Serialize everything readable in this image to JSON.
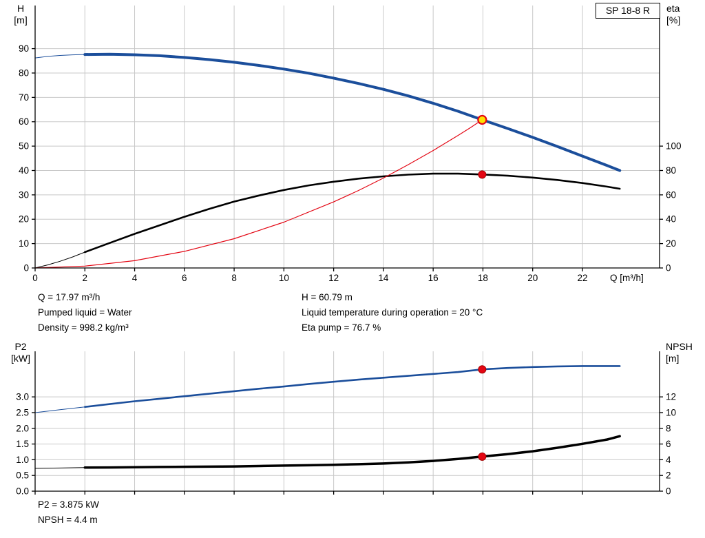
{
  "colors": {
    "curve_blue": "#1b4e9b",
    "curve_black": "#000000",
    "curve_red": "#e30613",
    "marker_yellow": "#ffe100",
    "marker_red": "#e30613",
    "grid": "#c8c8c8",
    "axis": "#000000"
  },
  "annotations": {
    "top_left": [
      "Q = 17.97 m³/h",
      "Pumped liquid = Water",
      "Density = 998.2 kg/m³"
    ],
    "top_right": [
      "H = 60.79 m",
      "Liquid temperature during operation = 20 °C",
      "Eta pump = 76.7 %"
    ],
    "bottom": [
      "P2 = 3.875 kW",
      "NPSH = 4.4 m"
    ]
  },
  "chart_data": [
    {
      "type": "line",
      "title": "SP 18-8 R",
      "x_axis": {
        "label": "Q [m³/h]",
        "min": 0,
        "max": 25.1,
        "tick_values": [
          0,
          2,
          4,
          6,
          8,
          10,
          12,
          14,
          16,
          18,
          20,
          22
        ],
        "tick_labels": [
          "0",
          "2",
          "4",
          "6",
          "8",
          "10",
          "12",
          "14",
          "16",
          "18",
          "20",
          "22"
        ]
      },
      "y_left": {
        "label": "H [m]",
        "label_lines": [
          "H",
          "[m]"
        ],
        "min": 0,
        "max": 107.7,
        "tick_values": [
          0,
          10,
          20,
          30,
          40,
          50,
          60,
          70,
          80,
          90
        ],
        "tick_labels": [
          "0",
          "10",
          "20",
          "30",
          "40",
          "50",
          "60",
          "70",
          "80",
          "90"
        ]
      },
      "y_right": {
        "label": "eta [%]",
        "label_lines": [
          "eta",
          "[%]"
        ],
        "min": 0,
        "max": 215.4,
        "tick_values": [
          0,
          20,
          40,
          60,
          80,
          100
        ],
        "tick_labels": [
          "0",
          "20",
          "40",
          "60",
          "80",
          "100"
        ]
      },
      "grid": true,
      "legend": "none",
      "series": [
        {
          "name": "head-curve",
          "axis": "left",
          "color": "#1b4e9b",
          "width": 4,
          "thin_until": 1.8,
          "points": [
            [
              0,
              86.2
            ],
            [
              0.5,
              86.8
            ],
            [
              1,
              87.2
            ],
            [
              1.5,
              87.45
            ],
            [
              2,
              87.6
            ],
            [
              3,
              87.7
            ],
            [
              4,
              87.5
            ],
            [
              5,
              87.1
            ],
            [
              6,
              86.4
            ],
            [
              7,
              85.5
            ],
            [
              8,
              84.4
            ],
            [
              9,
              83.1
            ],
            [
              10,
              81.6
            ],
            [
              11,
              79.9
            ],
            [
              12,
              77.9
            ],
            [
              13,
              75.7
            ],
            [
              14,
              73.3
            ],
            [
              15,
              70.6
            ],
            [
              16,
              67.6
            ],
            [
              17,
              64.3
            ],
            [
              17.97,
              60.79
            ],
            [
              19,
              57.2
            ],
            [
              20,
              53.6
            ],
            [
              21,
              49.8
            ],
            [
              22,
              45.9
            ],
            [
              23,
              42.0
            ],
            [
              23.5,
              40.0
            ]
          ]
        },
        {
          "name": "efficiency-curve",
          "axis": "right",
          "color": "#000000",
          "width": 2.6,
          "thin_until": 1.6,
          "points": [
            [
              0,
              0
            ],
            [
              0.5,
              2.5
            ],
            [
              1,
              5.5
            ],
            [
              1.5,
              9
            ],
            [
              2,
              13
            ],
            [
              3,
              20.5
            ],
            [
              4,
              28
            ],
            [
              5,
              35
            ],
            [
              6,
              42
            ],
            [
              7,
              48.5
            ],
            [
              8,
              54.5
            ],
            [
              9,
              59.5
            ],
            [
              10,
              64
            ],
            [
              11,
              67.8
            ],
            [
              12,
              70.8
            ],
            [
              13,
              73.3
            ],
            [
              14,
              75.2
            ],
            [
              15,
              76.6
            ],
            [
              16,
              77.4
            ],
            [
              17,
              77.4
            ],
            [
              17.97,
              76.7
            ],
            [
              19,
              75.7
            ],
            [
              20,
              74.2
            ],
            [
              21,
              72.2
            ],
            [
              22,
              69.7
            ],
            [
              23,
              66.7
            ],
            [
              23.5,
              65.0
            ]
          ]
        },
        {
          "name": "system-curve",
          "axis": "left",
          "color": "#e30613",
          "width": 1.2,
          "thin_until": 0,
          "points": [
            [
              0,
              0
            ],
            [
              2,
              0.75
            ],
            [
              4,
              3.0
            ],
            [
              6,
              6.8
            ],
            [
              8,
              12.0
            ],
            [
              10,
              18.8
            ],
            [
              12,
              27.1
            ],
            [
              13,
              31.8
            ],
            [
              14,
              36.9
            ],
            [
              15,
              42.4
            ],
            [
              16,
              48.2
            ],
            [
              17,
              54.4
            ],
            [
              17.5,
              57.6
            ],
            [
              17.97,
              60.79
            ]
          ]
        }
      ],
      "markers": [
        {
          "name": "duty-point-head",
          "x": 17.97,
          "y": 60.79,
          "axis": "left",
          "fill": "#ffe100",
          "stroke": "#e30613",
          "r": 6,
          "stroke_width": 2.2
        },
        {
          "name": "duty-point-eta",
          "x": 17.97,
          "y": 76.7,
          "axis": "right",
          "fill": "#e30613",
          "stroke": "#a50000",
          "r": 5.5,
          "stroke_width": 1
        }
      ]
    },
    {
      "type": "line",
      "title": "",
      "x_axis": {
        "label": "",
        "min": 0,
        "max": 25.1,
        "tick_values": [
          0,
          2,
          4,
          6,
          8,
          10,
          12,
          14,
          16,
          18,
          20,
          22
        ],
        "tick_labels": null
      },
      "y_left": {
        "label": "P2 [kW]",
        "label_lines": [
          "P2",
          "[kW]"
        ],
        "min": 0,
        "max": 4.45,
        "tick_values": [
          0,
          0.5,
          1,
          1.5,
          2,
          2.5,
          3
        ],
        "tick_labels": [
          "0.0",
          "0.5",
          "1.0",
          "1.5",
          "2.0",
          "2.5",
          "3.0"
        ]
      },
      "y_right": {
        "label": "NPSH [m]",
        "label_lines": [
          "NPSH",
          "[m]"
        ],
        "min": 0,
        "max": 17.8,
        "tick_values": [
          0,
          2,
          4,
          6,
          8,
          10,
          12
        ],
        "tick_labels": [
          "0",
          "2",
          "4",
          "6",
          "8",
          "10",
          "12"
        ]
      },
      "grid": true,
      "legend": "none",
      "series": [
        {
          "name": "p2-curve",
          "axis": "left",
          "color": "#1b4e9b",
          "width": 2.6,
          "thin_until": 1.7,
          "points": [
            [
              0,
              2.5
            ],
            [
              1,
              2.59
            ],
            [
              2,
              2.68
            ],
            [
              3,
              2.77
            ],
            [
              4,
              2.86
            ],
            [
              5,
              2.94
            ],
            [
              6,
              3.02
            ],
            [
              7,
              3.1
            ],
            [
              8,
              3.18
            ],
            [
              9,
              3.26
            ],
            [
              10,
              3.33
            ],
            [
              11,
              3.41
            ],
            [
              12,
              3.48
            ],
            [
              13,
              3.55
            ],
            [
              14,
              3.61
            ],
            [
              15,
              3.67
            ],
            [
              16,
              3.73
            ],
            [
              17,
              3.79
            ],
            [
              17.97,
              3.875
            ],
            [
              19,
              3.92
            ],
            [
              20,
              3.95
            ],
            [
              21,
              3.97
            ],
            [
              22,
              3.98
            ],
            [
              23,
              3.98
            ],
            [
              23.5,
              3.98
            ]
          ]
        },
        {
          "name": "npsh-curve",
          "axis": "right",
          "color": "#000000",
          "width": 3.5,
          "thin_until": 2,
          "points": [
            [
              0,
              2.9
            ],
            [
              1,
              2.95
            ],
            [
              2,
              3.0
            ],
            [
              3,
              3.02
            ],
            [
              4,
              3.05
            ],
            [
              5,
              3.08
            ],
            [
              6,
              3.1
            ],
            [
              7,
              3.12
            ],
            [
              8,
              3.15
            ],
            [
              9,
              3.2
            ],
            [
              10,
              3.25
            ],
            [
              11,
              3.3
            ],
            [
              12,
              3.36
            ],
            [
              13,
              3.43
            ],
            [
              14,
              3.52
            ],
            [
              15,
              3.66
            ],
            [
              16,
              3.85
            ],
            [
              17,
              4.1
            ],
            [
              17.97,
              4.4
            ],
            [
              19,
              4.72
            ],
            [
              20,
              5.08
            ],
            [
              21,
              5.52
            ],
            [
              22,
              6.02
            ],
            [
              23,
              6.58
            ],
            [
              23.5,
              7.0
            ]
          ]
        }
      ],
      "markers": [
        {
          "name": "duty-point-p2",
          "x": 17.97,
          "y": 3.875,
          "axis": "left",
          "fill": "#e30613",
          "stroke": "#a50000",
          "r": 5.5,
          "stroke_width": 1
        },
        {
          "name": "duty-point-npsh",
          "x": 17.97,
          "y": 4.4,
          "axis": "right",
          "fill": "#e30613",
          "stroke": "#a50000",
          "r": 5.5,
          "stroke_width": 1
        }
      ]
    }
  ]
}
